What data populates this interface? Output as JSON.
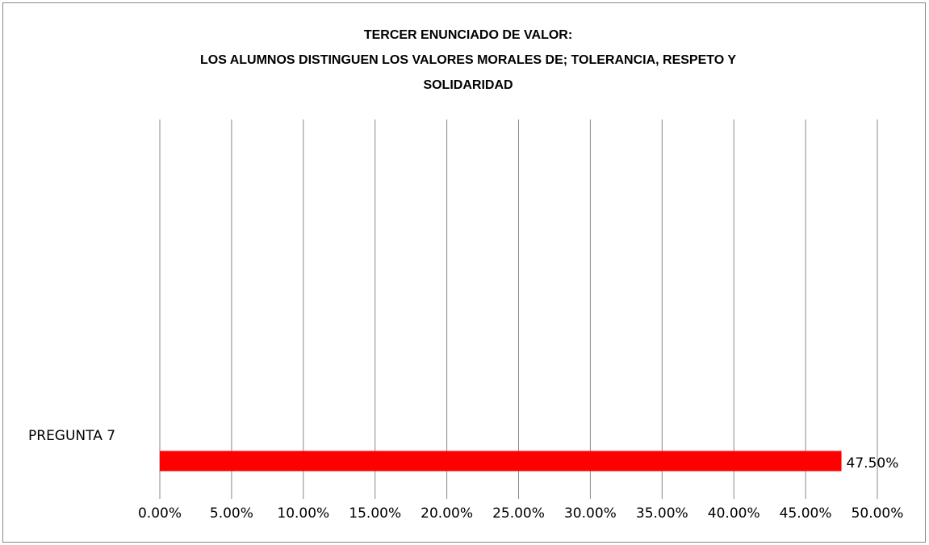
{
  "chart_data": {
    "type": "hbar",
    "title": [
      "TERCER ENUNCIADO DE VALOR:",
      "LOS ALUMNOS DISTINGUEN LOS VALORES MORALES DE; TOLERANCIA, RESPETO Y",
      "SOLIDARIDAD"
    ],
    "categories": [
      "PREGUNTA 7"
    ],
    "values": [
      47.5
    ],
    "value_labels": [
      "47.50%"
    ],
    "color": "#ff0000",
    "xlim": [
      0,
      50
    ],
    "xticks": [
      {
        "value": 0,
        "label": "0.00%"
      },
      {
        "value": 5,
        "label": "5.00%"
      },
      {
        "value": 10,
        "label": "10.00%"
      },
      {
        "value": 15,
        "label": "15.00%"
      },
      {
        "value": 20,
        "label": "20.00%"
      },
      {
        "value": 25,
        "label": "25.00%"
      },
      {
        "value": 30,
        "label": "30.00%"
      },
      {
        "value": 35,
        "label": "35.00%"
      },
      {
        "value": 40,
        "label": "40.00%"
      },
      {
        "value": 45,
        "label": "45.00%"
      },
      {
        "value": 50,
        "label": "50.00%"
      }
    ],
    "grid": true
  }
}
